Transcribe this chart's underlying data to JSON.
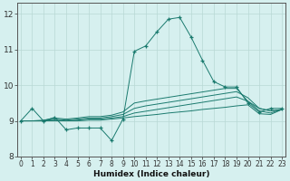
{
  "x": [
    0,
    1,
    2,
    3,
    4,
    5,
    6,
    7,
    8,
    9,
    10,
    11,
    12,
    13,
    14,
    15,
    16,
    17,
    18,
    19,
    20,
    21,
    22,
    23
  ],
  "line_main": [
    9.0,
    9.35,
    9.0,
    9.1,
    8.75,
    8.8,
    8.8,
    8.8,
    8.45,
    9.05,
    10.95,
    11.1,
    11.5,
    11.85,
    11.9,
    11.35,
    10.7,
    10.1,
    9.95,
    9.95,
    9.5,
    9.25,
    9.35,
    9.35
  ],
  "line2": [
    9.0,
    9.0,
    9.0,
    9.0,
    9.0,
    9.0,
    9.02,
    9.02,
    9.05,
    9.08,
    9.12,
    9.15,
    9.18,
    9.22,
    9.25,
    9.28,
    9.32,
    9.35,
    9.38,
    9.42,
    9.45,
    9.2,
    9.18,
    9.32
  ],
  "line3": [
    9.0,
    9.0,
    9.0,
    9.02,
    9.0,
    9.02,
    9.05,
    9.05,
    9.08,
    9.12,
    9.22,
    9.27,
    9.32,
    9.37,
    9.42,
    9.47,
    9.52,
    9.57,
    9.62,
    9.67,
    9.55,
    9.28,
    9.22,
    9.32
  ],
  "line4": [
    9.0,
    9.0,
    9.0,
    9.05,
    9.02,
    9.05,
    9.08,
    9.08,
    9.12,
    9.18,
    9.35,
    9.42,
    9.47,
    9.52,
    9.57,
    9.62,
    9.67,
    9.72,
    9.77,
    9.82,
    9.65,
    9.35,
    9.28,
    9.32
  ],
  "line5": [
    9.0,
    9.0,
    9.02,
    9.08,
    9.05,
    9.08,
    9.12,
    9.12,
    9.16,
    9.25,
    9.5,
    9.56,
    9.61,
    9.66,
    9.71,
    9.76,
    9.81,
    9.86,
    9.91,
    9.91,
    9.55,
    9.35,
    9.28,
    9.32
  ],
  "line_color": "#1a7a6e",
  "bg_color": "#d6f0ef",
  "grid_color": "#b8d8d5",
  "xlabel": "Humidex (Indice chaleur)",
  "ylim": [
    8.0,
    12.3
  ],
  "xlim": [
    -0.3,
    23.3
  ],
  "yticks": [
    8,
    9,
    10,
    11,
    12
  ],
  "xticks": [
    0,
    1,
    2,
    3,
    4,
    5,
    6,
    7,
    8,
    9,
    10,
    11,
    12,
    13,
    14,
    15,
    16,
    17,
    18,
    19,
    20,
    21,
    22,
    23
  ]
}
